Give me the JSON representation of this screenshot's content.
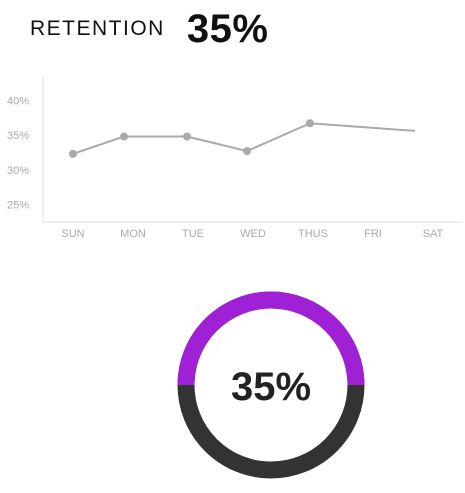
{
  "header": {
    "label": "RETENTION",
    "value": "35%"
  },
  "chart_data": {
    "type": "line",
    "categories": [
      "SUN",
      "MON",
      "TUE",
      "WED",
      "THUS",
      "FRI",
      "SAT"
    ],
    "y_ticks": [
      "40%",
      "35%",
      "30%",
      "25%"
    ],
    "y_tick_values": [
      40,
      35,
      30,
      25
    ],
    "ylim": [
      22.5,
      43.5
    ],
    "x_positions": [
      0.5,
      1.35,
      2.4,
      3.4,
      4.45,
      5.2,
      6.2
    ],
    "values": [
      32.3,
      34.8,
      34.8,
      32.7,
      36.7,
      null,
      35.6
    ],
    "markers": [
      true,
      true,
      true,
      true,
      true,
      false,
      false
    ],
    "line_color": "#aaaaaa",
    "grid": false
  },
  "donut": {
    "label": "35%",
    "value": 0.5,
    "fill_color": "#a020d6",
    "track_color": "#333333"
  }
}
